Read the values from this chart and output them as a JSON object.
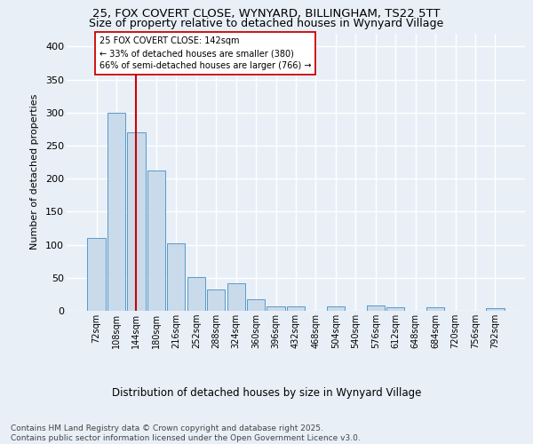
{
  "title_line1": "25, FOX COVERT CLOSE, WYNYARD, BILLINGHAM, TS22 5TT",
  "title_line2": "Size of property relative to detached houses in Wynyard Village",
  "xlabel": "Distribution of detached houses by size in Wynyard Village",
  "ylabel": "Number of detached properties",
  "categories": [
    "72sqm",
    "108sqm",
    "144sqm",
    "180sqm",
    "216sqm",
    "252sqm",
    "288sqm",
    "324sqm",
    "360sqm",
    "396sqm",
    "432sqm",
    "468sqm",
    "504sqm",
    "540sqm",
    "576sqm",
    "612sqm",
    "648sqm",
    "684sqm",
    "720sqm",
    "756sqm",
    "792sqm"
  ],
  "values": [
    110,
    300,
    270,
    212,
    102,
    51,
    32,
    41,
    17,
    7,
    7,
    0,
    7,
    0,
    8,
    5,
    0,
    5,
    0,
    0,
    4
  ],
  "bar_color": "#c9daea",
  "bar_edge_color": "#5a9ac8",
  "background_color": "#e8eff7",
  "grid_color": "#ffffff",
  "vline_index": 2,
  "vline_color": "#cc0000",
  "annotation_text": "25 FOX COVERT CLOSE: 142sqm\n← 33% of detached houses are smaller (380)\n66% of semi-detached houses are larger (766) →",
  "annotation_box_facecolor": "#ffffff",
  "annotation_box_edgecolor": "#cc0000",
  "ylim": [
    0,
    420
  ],
  "yticks": [
    0,
    50,
    100,
    150,
    200,
    250,
    300,
    350,
    400
  ],
  "footer_text": "Contains HM Land Registry data © Crown copyright and database right 2025.\nContains public sector information licensed under the Open Government Licence v3.0."
}
